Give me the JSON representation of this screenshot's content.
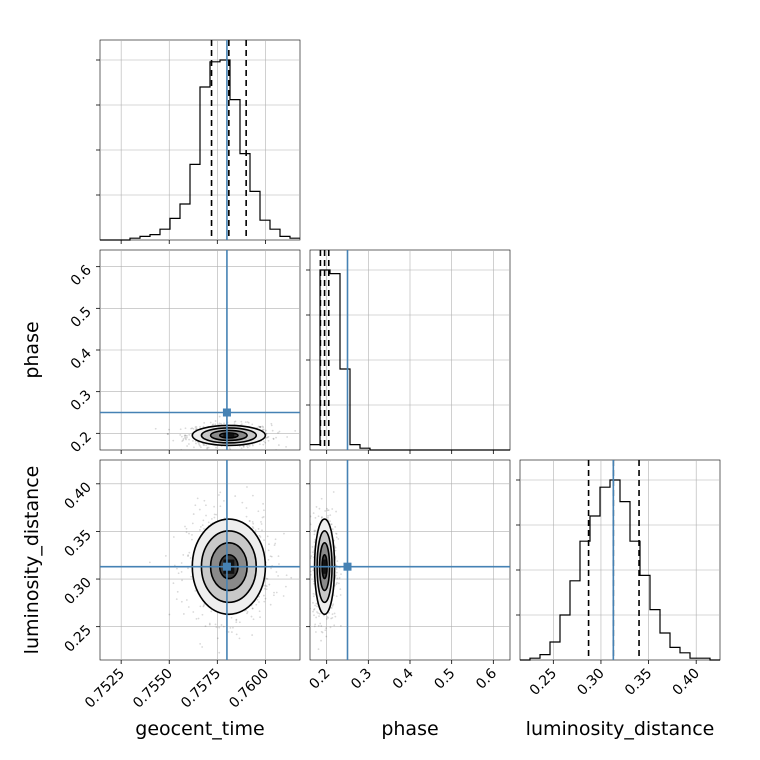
{
  "chart_data": {
    "type": "corner",
    "parameters": [
      "geocent_time",
      "phase",
      "luminosity_distance"
    ],
    "truths": {
      "geocent_time": 0.758,
      "phase": 0.25,
      "luminosity_distance": 0.313
    },
    "truth_color": "#4682b4",
    "quantiles": {
      "geocent_time": [
        0.7572,
        0.7581,
        0.759
      ],
      "phase": [
        0.185,
        0.195,
        0.205
      ],
      "luminosity_distance": [
        0.287,
        0.313,
        0.34
      ]
    },
    "ranges": {
      "geocent_time": [
        0.7514,
        0.7618
      ],
      "phase": [
        0.16,
        0.64
      ],
      "luminosity_distance": [
        0.215,
        0.425
      ]
    },
    "ticks": {
      "geocent_time": [
        "0.7525",
        "0.7550",
        "0.7575",
        "0.7600"
      ],
      "phase": [
        "0.2",
        "0.3",
        "0.4",
        "0.5",
        "0.6"
      ],
      "luminosity_distance": [
        "0.25",
        "0.30",
        "0.35",
        "0.40"
      ]
    },
    "histograms": {
      "geocent_time": {
        "edges": [
          0.7514,
          0.75192,
          0.75244,
          0.75296,
          0.75348,
          0.754,
          0.75452,
          0.75504,
          0.75556,
          0.75608,
          0.7566,
          0.75712,
          0.75764,
          0.75816,
          0.75868,
          0.7592,
          0.75972,
          0.76024,
          0.76076,
          0.76128,
          0.7618
        ],
        "counts": [
          0,
          0,
          0,
          1,
          2,
          3,
          6,
          12,
          20,
          42,
          85,
          99,
          100,
          78,
          48,
          27,
          11,
          6,
          2,
          1
        ]
      },
      "phase": {
        "edges": [
          0.16,
          0.184,
          0.208,
          0.232,
          0.256,
          0.28,
          0.304,
          0.328,
          0.352,
          0.376,
          0.4,
          0.424,
          0.448,
          0.472,
          0.496,
          0.52,
          0.544,
          0.568,
          0.592,
          0.616,
          0.64
        ],
        "counts": [
          3,
          100,
          98,
          45,
          3,
          1,
          0,
          0,
          0,
          0,
          0,
          0,
          0,
          0,
          0,
          0,
          0,
          0,
          0,
          0
        ]
      },
      "luminosity_distance": {
        "edges": [
          0.215,
          0.2255,
          0.236,
          0.2465,
          0.257,
          0.2675,
          0.278,
          0.2885,
          0.299,
          0.3095,
          0.32,
          0.3305,
          0.341,
          0.3515,
          0.362,
          0.3725,
          0.383,
          0.3935,
          0.404,
          0.4145,
          0.425
        ],
        "counts": [
          0,
          1,
          3,
          10,
          25,
          44,
          66,
          80,
          96,
          100,
          88,
          66,
          47,
          28,
          15,
          7,
          4,
          1,
          1,
          0
        ]
      }
    },
    "contours_2d": [
      {
        "x": "geocent_time",
        "y": "phase",
        "center": [
          0.7581,
          0.195
        ],
        "sigma": [
          0.00095,
          0.012
        ]
      },
      {
        "x": "geocent_time",
        "y": "luminosity_distance",
        "center": [
          0.7581,
          0.313
        ],
        "sigma": [
          0.00095,
          0.025
        ]
      },
      {
        "x": "phase",
        "y": "luminosity_distance",
        "center": [
          0.195,
          0.313
        ],
        "sigma": [
          0.012,
          0.025
        ]
      }
    ],
    "grid": true
  }
}
